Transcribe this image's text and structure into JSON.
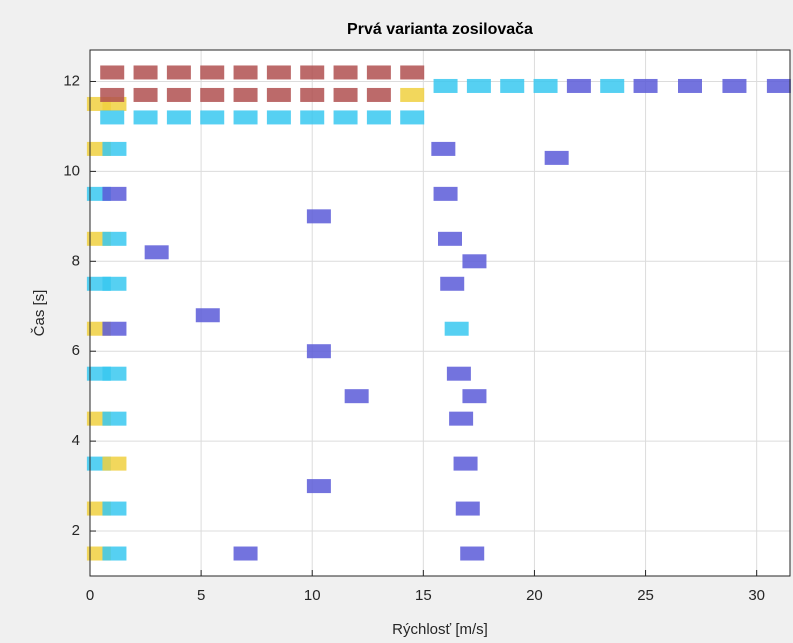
{
  "chart_data": {
    "type": "heatmap",
    "title": "Prvá varianta zosilovača",
    "x_label": "Rýchlosť [m/s]",
    "y_label": "Čas [s]",
    "xlim": [
      0,
      31.5
    ],
    "ylim": [
      1,
      12.7
    ],
    "xticks": [
      0,
      5,
      10,
      15,
      20,
      25,
      30
    ],
    "yticks": [
      2,
      4,
      6,
      8,
      10,
      12
    ],
    "grid": true,
    "colors": [
      "#5a5ad8",
      "#38c8f0",
      "#f0d040",
      "#b05050"
    ],
    "x": [
      0.4,
      0.4,
      0.4,
      0.4,
      0.4,
      0.4,
      0.4,
      0.4,
      0.4,
      0.4,
      0.4,
      1.1,
      1.1,
      1.1,
      1.1,
      1.1,
      1.1,
      1.1,
      1.1,
      1.1,
      1.1,
      1.1,
      1,
      2.5,
      4,
      5.5,
      7,
      8.5,
      10,
      11.5,
      13,
      14.5,
      1,
      2.5,
      4,
      5.5,
      7,
      8.5,
      10,
      11.5,
      13,
      14.5,
      1,
      2.5,
      4,
      5.5,
      7,
      8.5,
      10,
      11.5,
      13,
      14.5,
      16,
      17.5,
      19,
      20.5,
      22,
      23.5,
      25,
      27,
      29,
      31,
      17.2,
      17,
      16.9,
      16.7,
      16.6,
      16.5,
      16.3,
      16.2,
      16,
      15.9,
      10.3,
      10.3,
      10.3,
      17.3,
      17.3,
      5.3,
      3,
      12,
      7,
      21
    ],
    "y": [
      1.5,
      2.5,
      3.5,
      4.5,
      5.5,
      6.5,
      7.5,
      8.5,
      9.5,
      10.5,
      11.5,
      1.5,
      2.5,
      3.5,
      4.5,
      5.5,
      6.5,
      7.5,
      8.5,
      9.5,
      10.5,
      11.5,
      12.2,
      12.2,
      12.2,
      12.2,
      12.2,
      12.2,
      12.2,
      12.2,
      12.2,
      12.2,
      11.7,
      11.7,
      11.7,
      11.7,
      11.7,
      11.7,
      11.7,
      11.7,
      11.7,
      11.7,
      11.2,
      11.2,
      11.2,
      11.2,
      11.2,
      11.2,
      11.2,
      11.2,
      11.2,
      11.2,
      11.9,
      11.9,
      11.9,
      11.9,
      11.9,
      11.9,
      11.9,
      11.9,
      11.9,
      11.9,
      1.5,
      2.5,
      3.5,
      4.5,
      5.5,
      6.5,
      7.5,
      8.5,
      9.5,
      10.5,
      3,
      6,
      9,
      5,
      8,
      6.8,
      8.2,
      5,
      1.5,
      10.3
    ],
    "values": [
      3,
      3,
      2,
      3,
      2,
      3,
      2,
      3,
      2,
      3,
      3,
      2,
      2,
      3,
      2,
      2,
      1,
      2,
      2,
      1,
      2,
      3,
      4,
      4,
      4,
      4,
      4,
      4,
      4,
      4,
      4,
      4,
      4,
      4,
      4,
      4,
      4,
      4,
      4,
      4,
      4,
      3,
      2,
      2,
      2,
      2,
      2,
      2,
      2,
      2,
      2,
      2,
      2,
      2,
      2,
      2,
      1,
      2,
      1,
      1,
      1,
      1,
      1,
      1,
      1,
      1,
      1,
      2,
      1,
      1,
      1,
      1,
      1,
      1,
      1,
      1,
      1,
      1,
      1,
      1,
      1,
      1
    ]
  }
}
